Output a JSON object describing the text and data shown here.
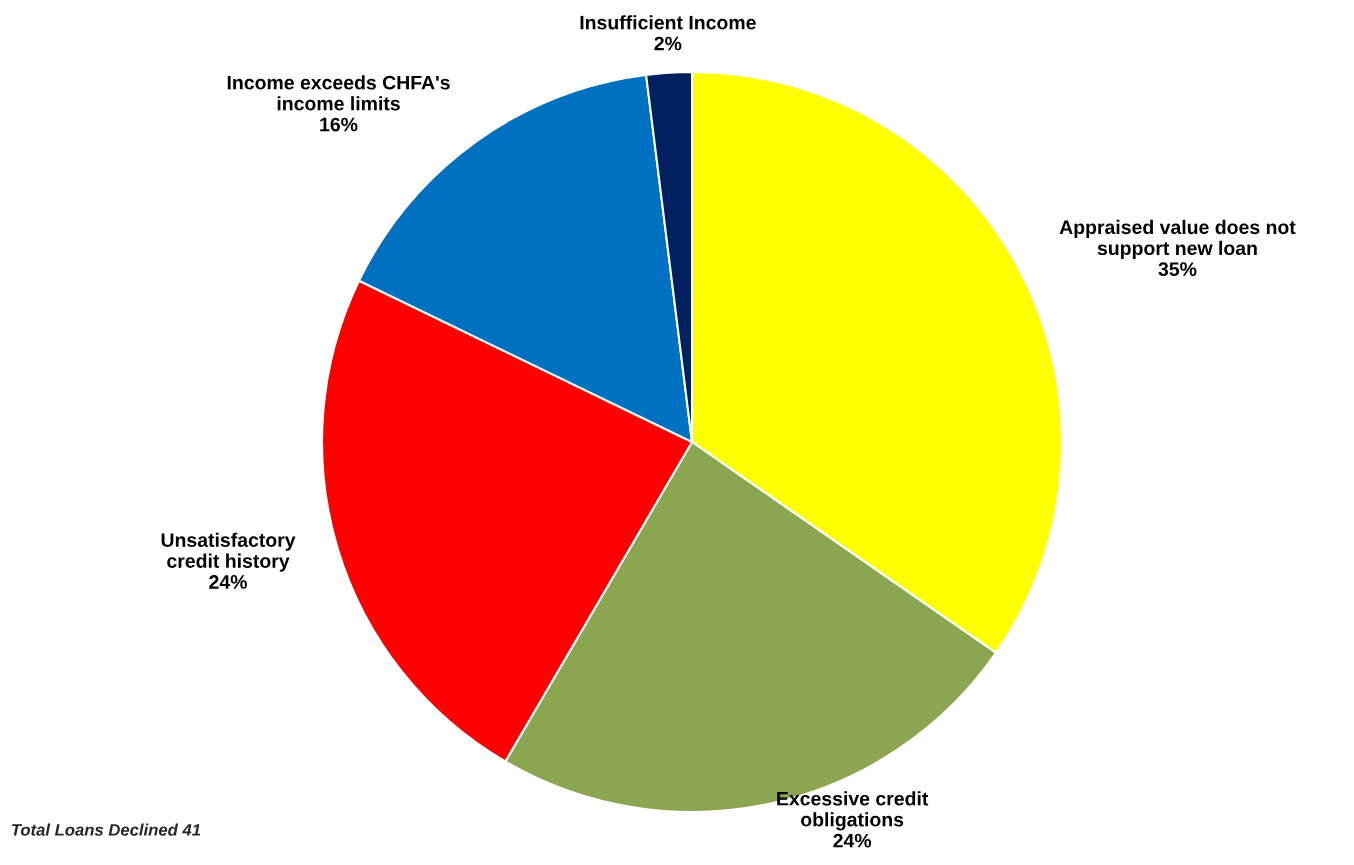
{
  "chart_data": {
    "type": "pie",
    "categories": [
      "Appraised value does not\nsupport new loan",
      "Excessive credit\nobligations",
      "Unsatisfactory\ncredit history",
      "Income exceeds CHFA's\nincome limits",
      "Insufficient Income"
    ],
    "values": [
      35,
      24,
      24,
      16,
      2
    ],
    "colors": [
      "#ffff00",
      "#8ba650",
      "#ff0000",
      "#0070c0",
      "#002060"
    ],
    "value_labels": [
      "35%",
      "24%",
      "24%",
      "16%",
      "2%"
    ],
    "annotations": [
      "Total Loans Declined 41"
    ]
  }
}
